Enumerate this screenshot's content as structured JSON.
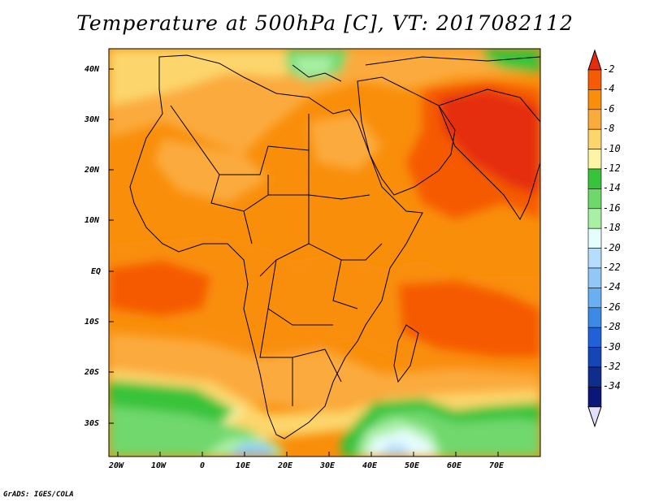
{
  "title": "Temperature at 500hPa [C], VT: 2017082112",
  "credit": "GrADS: IGES/COLA",
  "map": {
    "lat_labels": [
      "40N",
      "30N",
      "20N",
      "10N",
      "EQ",
      "10S",
      "20S",
      "30S"
    ],
    "lon_labels": [
      "20W",
      "10W",
      "0",
      "10E",
      "20E",
      "30E",
      "40E",
      "50E",
      "60E",
      "70E"
    ]
  },
  "colorbar": {
    "labels": [
      "-2",
      "-4",
      "-6",
      "-8",
      "-10",
      "-12",
      "-14",
      "-16",
      "-18",
      "-20",
      "-22",
      "-24",
      "-26",
      "-28",
      "-30",
      "-32",
      "-34"
    ],
    "colors": [
      "#e52d0c",
      "#f55a05",
      "#f98e0a",
      "#fbaa3c",
      "#fcd66c",
      "#fef4a8",
      "#37c33a",
      "#6fd86d",
      "#a9f0a4",
      "#e6fdfd",
      "#b6ddfb",
      "#92c8f5",
      "#6aaff2",
      "#3b8ae6",
      "#2161d7",
      "#1645b6",
      "#0f2e8c",
      "#0a1678",
      "#e3e0fa"
    ]
  }
}
